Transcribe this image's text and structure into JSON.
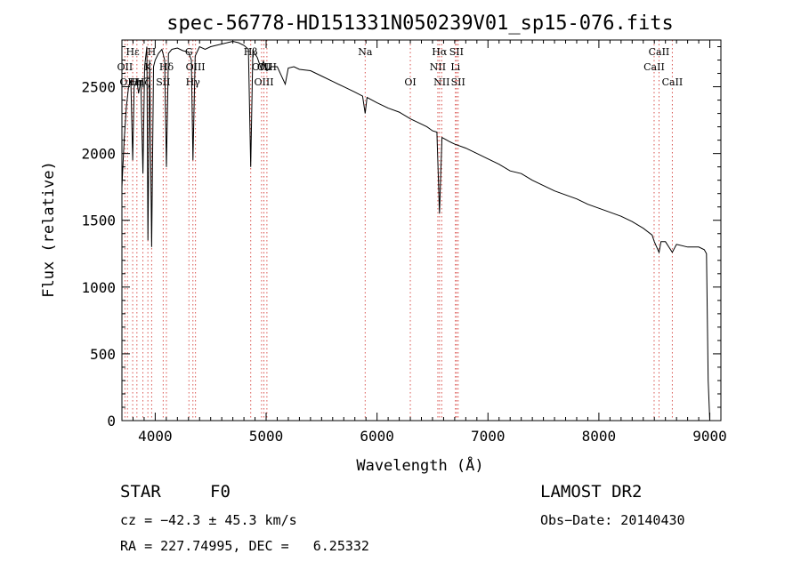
{
  "chart_data": {
    "type": "line",
    "title": "spec-56778-HD151331N050239V01_sp15-076.fits",
    "xlabel": "Wavelength (Å)",
    "ylabel": "Flux (relative)",
    "xlim": [
      3700,
      9100
    ],
    "ylim": [
      0,
      2850
    ],
    "x_ticks": [
      4000,
      5000,
      6000,
      7000,
      8000,
      9000
    ],
    "y_ticks": [
      0,
      500,
      1000,
      1500,
      2000,
      2500
    ],
    "series": [
      {
        "points": [
          [
            3700,
            1750
          ],
          [
            3720,
            2100
          ],
          [
            3740,
            2350
          ],
          [
            3760,
            2500
          ],
          [
            3780,
            2550
          ],
          [
            3797,
            1950
          ],
          [
            3810,
            2500
          ],
          [
            3835,
            2550
          ],
          [
            3850,
            2450
          ],
          [
            3870,
            2550
          ],
          [
            3889,
            1850
          ],
          [
            3905,
            2650
          ],
          [
            3925,
            2800
          ],
          [
            3934,
            1350
          ],
          [
            3950,
            2700
          ],
          [
            3968,
            1300
          ],
          [
            3985,
            2650
          ],
          [
            4000,
            2700
          ],
          [
            4030,
            2750
          ],
          [
            4060,
            2780
          ],
          [
            4085,
            2700
          ],
          [
            4101,
            1900
          ],
          [
            4120,
            2750
          ],
          [
            4150,
            2780
          ],
          [
            4200,
            2790
          ],
          [
            4250,
            2770
          ],
          [
            4300,
            2760
          ],
          [
            4326,
            2700
          ],
          [
            4340,
            1950
          ],
          [
            4360,
            2730
          ],
          [
            4400,
            2800
          ],
          [
            4450,
            2780
          ],
          [
            4500,
            2800
          ],
          [
            4550,
            2810
          ],
          [
            4600,
            2820
          ],
          [
            4650,
            2830
          ],
          [
            4700,
            2840
          ],
          [
            4750,
            2830
          ],
          [
            4800,
            2810
          ],
          [
            4840,
            2780
          ],
          [
            4861,
            1900
          ],
          [
            4880,
            2770
          ],
          [
            4920,
            2720
          ],
          [
            4957,
            2630
          ],
          [
            4975,
            2690
          ],
          [
            5007,
            2620
          ],
          [
            5050,
            2650
          ],
          [
            5100,
            2650
          ],
          [
            5150,
            2560
          ],
          [
            5172,
            2520
          ],
          [
            5200,
            2640
          ],
          [
            5250,
            2650
          ],
          [
            5300,
            2630
          ],
          [
            5400,
            2620
          ],
          [
            5500,
            2580
          ],
          [
            5600,
            2540
          ],
          [
            5700,
            2500
          ],
          [
            5800,
            2460
          ],
          [
            5870,
            2430
          ],
          [
            5893,
            2300
          ],
          [
            5910,
            2420
          ],
          [
            6000,
            2380
          ],
          [
            6100,
            2340
          ],
          [
            6200,
            2310
          ],
          [
            6300,
            2260
          ],
          [
            6400,
            2220
          ],
          [
            6450,
            2200
          ],
          [
            6500,
            2170
          ],
          [
            6540,
            2160
          ],
          [
            6563,
            1550
          ],
          [
            6585,
            2120
          ],
          [
            6650,
            2090
          ],
          [
            6700,
            2070
          ],
          [
            6800,
            2040
          ],
          [
            6900,
            2000
          ],
          [
            7000,
            1960
          ],
          [
            7100,
            1920
          ],
          [
            7200,
            1870
          ],
          [
            7300,
            1850
          ],
          [
            7400,
            1800
          ],
          [
            7500,
            1760
          ],
          [
            7600,
            1720
          ],
          [
            7700,
            1690
          ],
          [
            7800,
            1660
          ],
          [
            7900,
            1620
          ],
          [
            8000,
            1590
          ],
          [
            8100,
            1560
          ],
          [
            8200,
            1530
          ],
          [
            8300,
            1490
          ],
          [
            8400,
            1440
          ],
          [
            8480,
            1390
          ],
          [
            8500,
            1340
          ],
          [
            8542,
            1260
          ],
          [
            8560,
            1340
          ],
          [
            8600,
            1340
          ],
          [
            8662,
            1260
          ],
          [
            8700,
            1320
          ],
          [
            8800,
            1300
          ],
          [
            8900,
            1300
          ],
          [
            8950,
            1280
          ],
          [
            8970,
            1250
          ],
          [
            8985,
            300
          ],
          [
            9000,
            0
          ]
        ]
      }
    ],
    "line_markers": [
      {
        "wavelength": 3727,
        "label": "OII",
        "row": 2
      },
      {
        "wavelength": 3750,
        "label": "OII",
        "row": 3
      },
      {
        "wavelength": 3797,
        "label": "Hε",
        "row": 1
      },
      {
        "wavelength": 3835,
        "label": "Hη",
        "row": 3
      },
      {
        "wavelength": 3889,
        "label": "Hζ",
        "row": 3
      },
      {
        "wavelength": 3934,
        "label": "K",
        "row": 2
      },
      {
        "wavelength": 3968,
        "label": "H",
        "row": 1
      },
      {
        "wavelength": 4072,
        "label": "SII",
        "row": 3
      },
      {
        "wavelength": 4101,
        "label": "Hδ",
        "row": 2
      },
      {
        "wavelength": 4304,
        "label": "G",
        "row": 1
      },
      {
        "wavelength": 4340,
        "label": "Hγ",
        "row": 3
      },
      {
        "wavelength": 4363,
        "label": "OIII",
        "row": 2
      },
      {
        "wavelength": 4861,
        "label": "Hβ",
        "row": 1
      },
      {
        "wavelength": 4959,
        "label": "OIII",
        "row": 2
      },
      {
        "wavelength": 4980,
        "label": "OIII",
        "row": 3
      },
      {
        "wavelength": 5007,
        "label": "OIII",
        "row": 2
      },
      {
        "wavelength": 5893,
        "label": "Na",
        "row": 1
      },
      {
        "wavelength": 6300,
        "label": "OI",
        "row": 3
      },
      {
        "wavelength": 6548,
        "label": "NII",
        "row": 2
      },
      {
        "wavelength": 6563,
        "label": "Hα",
        "row": 1
      },
      {
        "wavelength": 6583,
        "label": "NII",
        "row": 3
      },
      {
        "wavelength": 6707,
        "label": "Li",
        "row": 2
      },
      {
        "wavelength": 6716,
        "label": "SII",
        "row": 1
      },
      {
        "wavelength": 6731,
        "label": "SII",
        "row": 3
      },
      {
        "wavelength": 8498,
        "label": "CaII",
        "row": 2
      },
      {
        "wavelength": 8542,
        "label": "CaII",
        "row": 1
      },
      {
        "wavelength": 8662,
        "label": "CaII",
        "row": 3
      }
    ],
    "grid": false,
    "legend": "none"
  },
  "info": {
    "object_class": "STAR",
    "subclass": "F0",
    "survey": "LAMOST DR2",
    "cz": "cz = −42.3 ± 45.3 km/s",
    "obs_date": "Obs−Date: 20140430",
    "radec": "RA = 227.74995, DEC =   6.25332"
  }
}
